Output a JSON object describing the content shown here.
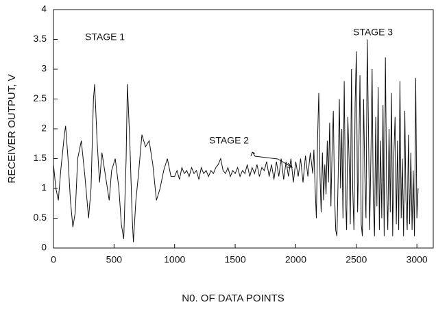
{
  "chart_data": {
    "type": "line",
    "ylabel": "RECEIVER OUTPUT, V",
    "xlabel": "N0. OF DATA POINTS",
    "annotations": [
      "STAGE 1",
      "STAGE 2",
      "STAGE 3"
    ],
    "color": "#111111",
    "xlim": [
      0,
      3135
    ],
    "ylim": [
      0,
      4
    ],
    "xticks": [
      0,
      500,
      1000,
      1500,
      2000,
      2500,
      3000
    ],
    "yticks": [
      0,
      0.5,
      1,
      1.5,
      2,
      2.5,
      3,
      3.5,
      4
    ],
    "x": [
      0,
      20,
      40,
      60,
      90,
      100,
      120,
      140,
      160,
      180,
      200,
      230,
      260,
      290,
      310,
      330,
      340,
      360,
      380,
      400,
      430,
      460,
      480,
      510,
      540,
      560,
      580,
      600,
      610,
      630,
      650,
      660,
      680,
      700,
      730,
      760,
      790,
      820,
      850,
      880,
      910,
      940,
      970,
      1000,
      1020,
      1040,
      1060,
      1080,
      1100,
      1120,
      1140,
      1160,
      1180,
      1200,
      1220,
      1240,
      1260,
      1280,
      1300,
      1320,
      1340,
      1360,
      1380,
      1400,
      1420,
      1440,
      1460,
      1480,
      1500,
      1520,
      1540,
      1560,
      1580,
      1600,
      1620,
      1640,
      1660,
      1680,
      1700,
      1720,
      1740,
      1760,
      1780,
      1800,
      1820,
      1840,
      1860,
      1880,
      1900,
      1920,
      1940,
      1960,
      1980,
      2000,
      2020,
      2040,
      2060,
      2080,
      2100,
      2120,
      2140,
      2150,
      2160,
      2170,
      2180,
      2190,
      2200,
      2210,
      2220,
      2230,
      2240,
      2250,
      2260,
      2270,
      2280,
      2290,
      2300,
      2310,
      2320,
      2330,
      2340,
      2350,
      2360,
      2370,
      2380,
      2390,
      2400,
      2410,
      2420,
      2430,
      2440,
      2450,
      2460,
      2470,
      2480,
      2490,
      2500,
      2510,
      2520,
      2530,
      2540,
      2550,
      2560,
      2570,
      2580,
      2590,
      2600,
      2610,
      2620,
      2630,
      2640,
      2650,
      2660,
      2670,
      2680,
      2690,
      2700,
      2710,
      2720,
      2730,
      2740,
      2750,
      2760,
      2770,
      2780,
      2790,
      2800,
      2810,
      2820,
      2830,
      2840,
      2850,
      2860,
      2870,
      2880,
      2890,
      2900,
      2910,
      2920,
      2930,
      2940,
      2950,
      2960,
      2970,
      2980,
      2990,
      3000,
      3010
    ],
    "values": [
      1.4,
      1.0,
      0.8,
      1.3,
      1.9,
      2.05,
      1.5,
      0.8,
      0.35,
      0.6,
      1.5,
      1.8,
      1.2,
      0.5,
      1.0,
      2.5,
      2.75,
      1.8,
      1.1,
      1.6,
      1.2,
      0.8,
      1.3,
      1.5,
      1.0,
      0.4,
      0.15,
      1.5,
      2.75,
      1.8,
      0.5,
      0.1,
      0.8,
      1.2,
      1.9,
      1.7,
      1.8,
      1.4,
      0.8,
      1.0,
      1.3,
      1.5,
      1.2,
      1.2,
      1.3,
      1.15,
      1.35,
      1.25,
      1.3,
      1.2,
      1.35,
      1.25,
      1.3,
      1.15,
      1.35,
      1.25,
      1.3,
      1.2,
      1.3,
      1.25,
      1.35,
      1.4,
      1.5,
      1.3,
      1.25,
      1.35,
      1.2,
      1.3,
      1.25,
      1.35,
      1.2,
      1.3,
      1.25,
      1.4,
      1.2,
      1.35,
      1.25,
      1.4,
      1.2,
      1.35,
      1.3,
      1.45,
      1.2,
      1.4,
      1.15,
      1.45,
      1.2,
      1.5,
      1.15,
      1.45,
      1.2,
      1.5,
      1.1,
      1.45,
      1.2,
      1.5,
      1.1,
      1.55,
      1.2,
      1.6,
      1.25,
      1.65,
      1.0,
      0.5,
      1.8,
      2.6,
      1.2,
      0.6,
      1.6,
      0.8,
      1.4,
      0.9,
      1.8,
      1.1,
      2.1,
      0.7,
      1.6,
      2.3,
      0.9,
      0.3,
      0.2,
      1.2,
      2.5,
      1.0,
      2.0,
      0.5,
      2.8,
      0.9,
      0.3,
      2.2,
      1.5,
      0.4,
      3.0,
      1.0,
      0.3,
      2.4,
      3.3,
      0.6,
      1.5,
      2.9,
      0.4,
      0.2,
      2.5,
      1.2,
      0.5,
      3.5,
      2.0,
      0.3,
      1.5,
      3.0,
      0.8,
      0.2,
      2.2,
      0.7,
      2.7,
      0.3,
      1.8,
      0.5,
      2.4,
      0.2,
      3.2,
      1.0,
      0.3,
      2.0,
      0.6,
      2.6,
      0.2,
      1.6,
      2.2,
      0.4,
      1.8,
      0.3,
      2.8,
      0.5,
      1.5,
      0.2,
      2.3,
      0.8,
      0.3,
      1.9,
      0.4,
      1.6,
      0.3,
      1.3,
      0.2,
      2.85,
      0.5,
      1.0
    ]
  }
}
